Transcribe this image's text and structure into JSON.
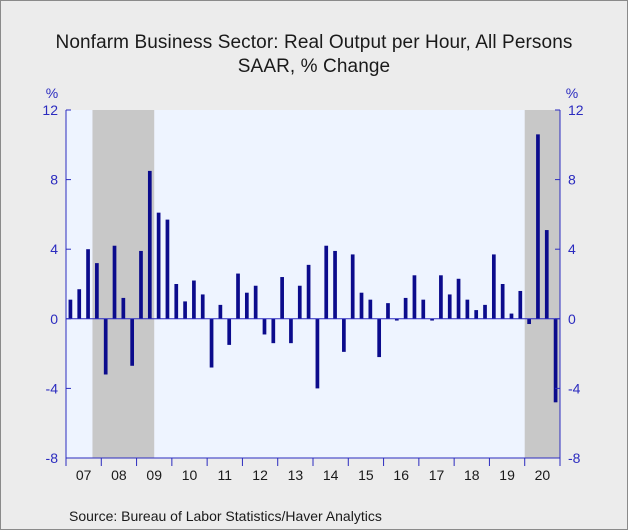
{
  "chart_data": {
    "type": "bar",
    "title": "Nonfarm Business Sector: Real Output per Hour, All Persons",
    "subtitle": "SAAR, % Change",
    "ylabel_left": "%",
    "ylabel_right": "%",
    "ylim": [
      -8,
      12
    ],
    "yticks": [
      -8,
      -4,
      0,
      4,
      8,
      12
    ],
    "grid": false,
    "source": "Source:  Bureau of Labor Statistics/Haver Analytics",
    "year_labels": [
      "07",
      "08",
      "09",
      "10",
      "11",
      "12",
      "13",
      "14",
      "15",
      "16",
      "17",
      "18",
      "19",
      "20"
    ],
    "start_quarter": "2007Q1",
    "recessions": [
      {
        "start": "2007Q4",
        "end": "2009Q2"
      },
      {
        "start": "2020Q1",
        "end": "2020Q4"
      }
    ],
    "colors": {
      "bar": "#0b0b8c",
      "axis": "#2b2bbf",
      "recession": "#c8c8c8",
      "plot_bg": "#eef4ff"
    },
    "series": [
      {
        "values": [
          1.1,
          1.7,
          4.0,
          3.2,
          -3.2,
          4.2,
          1.2,
          -2.7,
          3.9,
          8.5,
          6.1,
          5.7,
          2.0,
          1.0,
          2.2,
          1.4,
          -2.8,
          0.8,
          -1.5,
          2.6,
          1.5,
          1.9,
          -0.9,
          -1.4,
          2.4,
          -1.4,
          1.9,
          3.1,
          -4.0,
          4.2,
          3.9,
          -1.9,
          3.7,
          1.5,
          1.1,
          -2.2,
          0.9,
          -0.1,
          1.2,
          2.5,
          1.1,
          -0.1,
          2.5,
          1.4,
          2.3,
          1.1,
          0.5,
          0.8,
          3.7,
          2.0,
          0.3,
          1.6,
          -0.3,
          10.6,
          5.1,
          -4.8
        ]
      }
    ]
  }
}
